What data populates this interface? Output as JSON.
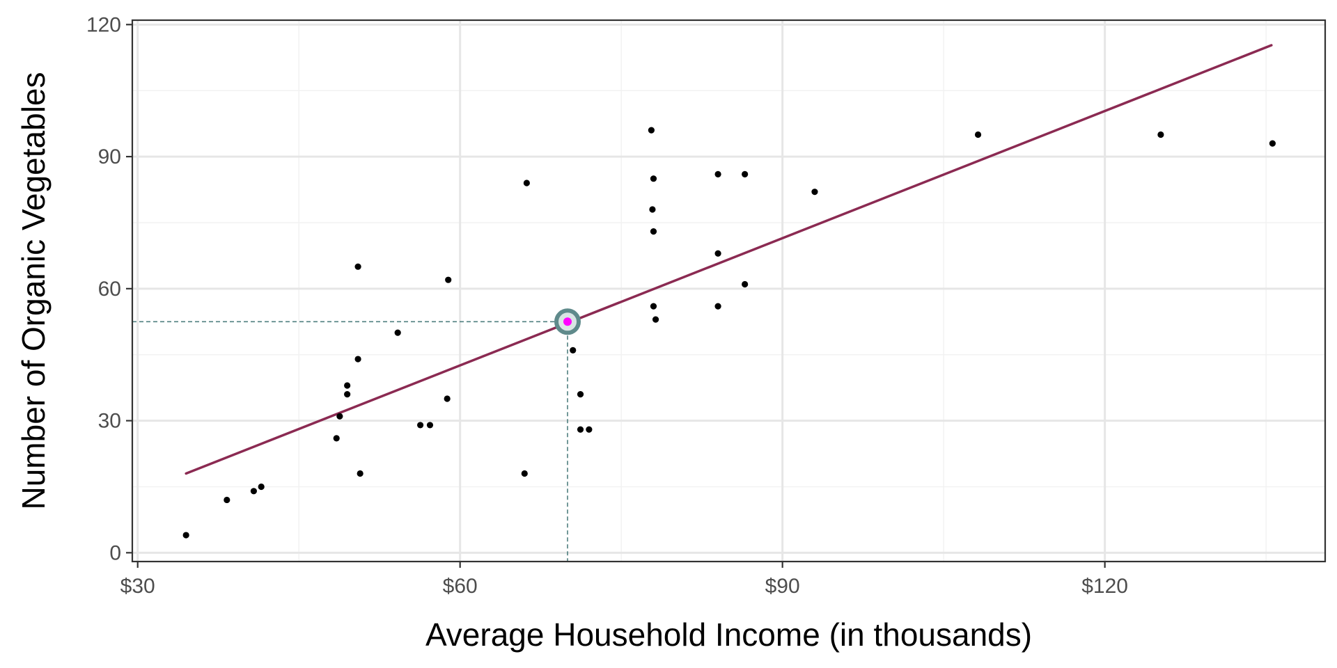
{
  "chart_data": {
    "type": "scatter",
    "title": "",
    "xlabel": "Average Household Income (in thousands)",
    "ylabel": "Number of Organic Vegetables",
    "xlim": [
      29.5,
      140.5
    ],
    "ylim": [
      -2,
      121
    ],
    "x_ticks": [
      30,
      60,
      90,
      120
    ],
    "x_tick_labels": [
      "$30",
      "$60",
      "$90",
      "$120"
    ],
    "x_minor_ticks": [
      45,
      75,
      105,
      135
    ],
    "y_ticks": [
      0,
      30,
      60,
      90,
      120
    ],
    "y_tick_labels": [
      "0",
      "30",
      "60",
      "90",
      "120"
    ],
    "y_minor_ticks": [
      15,
      45,
      75,
      105
    ],
    "grid": true,
    "points": [
      {
        "x": 34.5,
        "y": 4
      },
      {
        "x": 38.3,
        "y": 12
      },
      {
        "x": 40.8,
        "y": 14
      },
      {
        "x": 41.5,
        "y": 15
      },
      {
        "x": 48.5,
        "y": 26
      },
      {
        "x": 48.8,
        "y": 31
      },
      {
        "x": 49.5,
        "y": 38
      },
      {
        "x": 49.5,
        "y": 36
      },
      {
        "x": 50.5,
        "y": 65
      },
      {
        "x": 50.5,
        "y": 44
      },
      {
        "x": 50.7,
        "y": 18
      },
      {
        "x": 54.2,
        "y": 50
      },
      {
        "x": 56.3,
        "y": 29
      },
      {
        "x": 57.2,
        "y": 29
      },
      {
        "x": 58.8,
        "y": 35
      },
      {
        "x": 58.9,
        "y": 62
      },
      {
        "x": 66.0,
        "y": 18
      },
      {
        "x": 66.2,
        "y": 84
      },
      {
        "x": 70.5,
        "y": 46
      },
      {
        "x": 71.2,
        "y": 36
      },
      {
        "x": 71.2,
        "y": 28
      },
      {
        "x": 72.0,
        "y": 28
      },
      {
        "x": 77.8,
        "y": 96
      },
      {
        "x": 78.0,
        "y": 85
      },
      {
        "x": 77.9,
        "y": 78
      },
      {
        "x": 78.0,
        "y": 73
      },
      {
        "x": 78.0,
        "y": 56
      },
      {
        "x": 78.2,
        "y": 53
      },
      {
        "x": 84.0,
        "y": 86
      },
      {
        "x": 84.0,
        "y": 68
      },
      {
        "x": 84.0,
        "y": 56
      },
      {
        "x": 86.5,
        "y": 86
      },
      {
        "x": 86.5,
        "y": 61
      },
      {
        "x": 93.0,
        "y": 82
      },
      {
        "x": 108.2,
        "y": 95
      },
      {
        "x": 125.2,
        "y": 95
      },
      {
        "x": 135.6,
        "y": 93
      }
    ],
    "fit_line": {
      "x": [
        34.5,
        135.5
      ],
      "y": [
        18,
        115.3
      ],
      "color": "#8b2a52"
    },
    "highlight_point": {
      "x": 70.0,
      "y": 52.5,
      "ring_color": "#5f8a8b",
      "fill_color": "#ff00ff"
    },
    "reference_lines": {
      "color": "#4f7f7f",
      "style": "dashed"
    },
    "point_color": "#000000",
    "panel_border_color": "#333333",
    "grid_major_color": "#e6e6e6",
    "grid_minor_color": "#f2f2f2"
  }
}
